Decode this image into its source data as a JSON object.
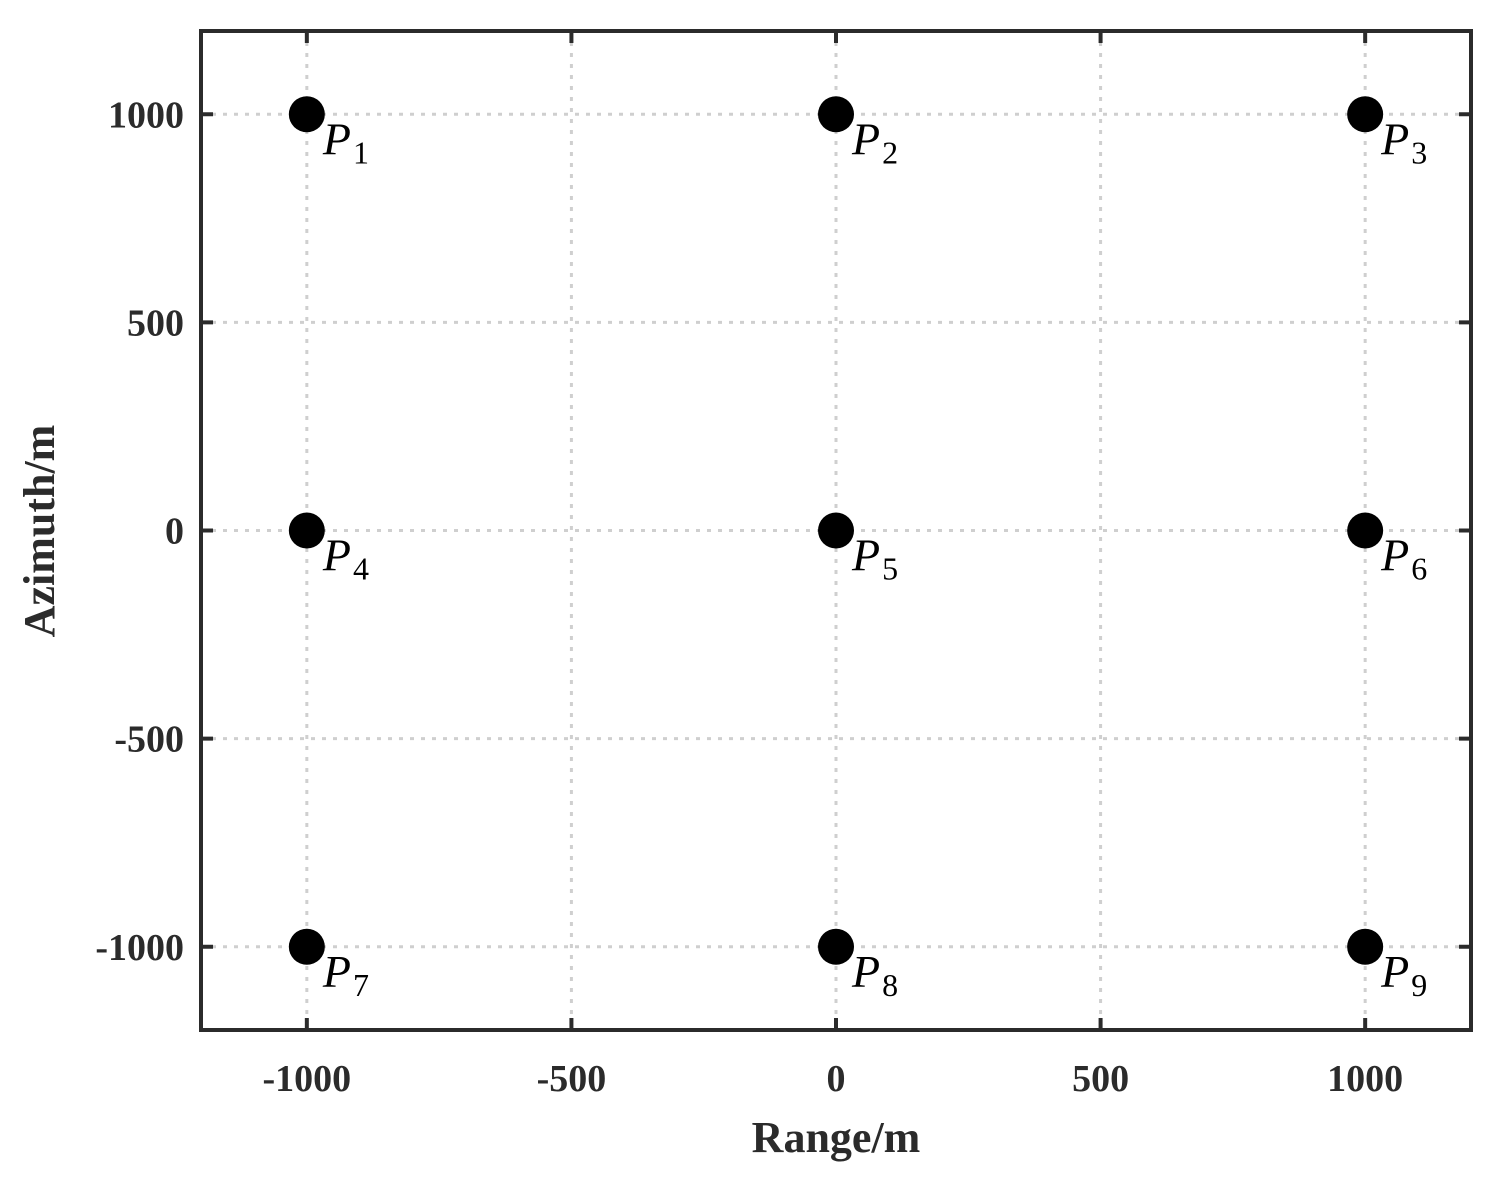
{
  "chart_data": {
    "type": "scatter",
    "xlabel": "Range/m",
    "ylabel": "Azimuth/m",
    "xlim": [
      -1200,
      1200
    ],
    "ylim": [
      -1200,
      1200
    ],
    "xticks": [
      -1000,
      -500,
      0,
      500,
      1000
    ],
    "yticks": [
      -1000,
      -500,
      0,
      500,
      1000
    ],
    "grid": true,
    "points": [
      {
        "label": "P",
        "sub": "1",
        "x": -1000,
        "y": 1000
      },
      {
        "label": "P",
        "sub": "2",
        "x": 0,
        "y": 1000
      },
      {
        "label": "P",
        "sub": "3",
        "x": 1000,
        "y": 1000
      },
      {
        "label": "P",
        "sub": "4",
        "x": -1000,
        "y": 0
      },
      {
        "label": "P",
        "sub": "5",
        "x": 0,
        "y": 0
      },
      {
        "label": "P",
        "sub": "6",
        "x": 1000,
        "y": 0
      },
      {
        "label": "P",
        "sub": "7",
        "x": -1000,
        "y": -1000
      },
      {
        "label": "P",
        "sub": "8",
        "x": 0,
        "y": -1000
      },
      {
        "label": "P",
        "sub": "9",
        "x": 1000,
        "y": -1000
      }
    ],
    "colors": {
      "marker": "#000000",
      "axes": "#2b2b2b",
      "grid": "#cfcfcf"
    }
  }
}
